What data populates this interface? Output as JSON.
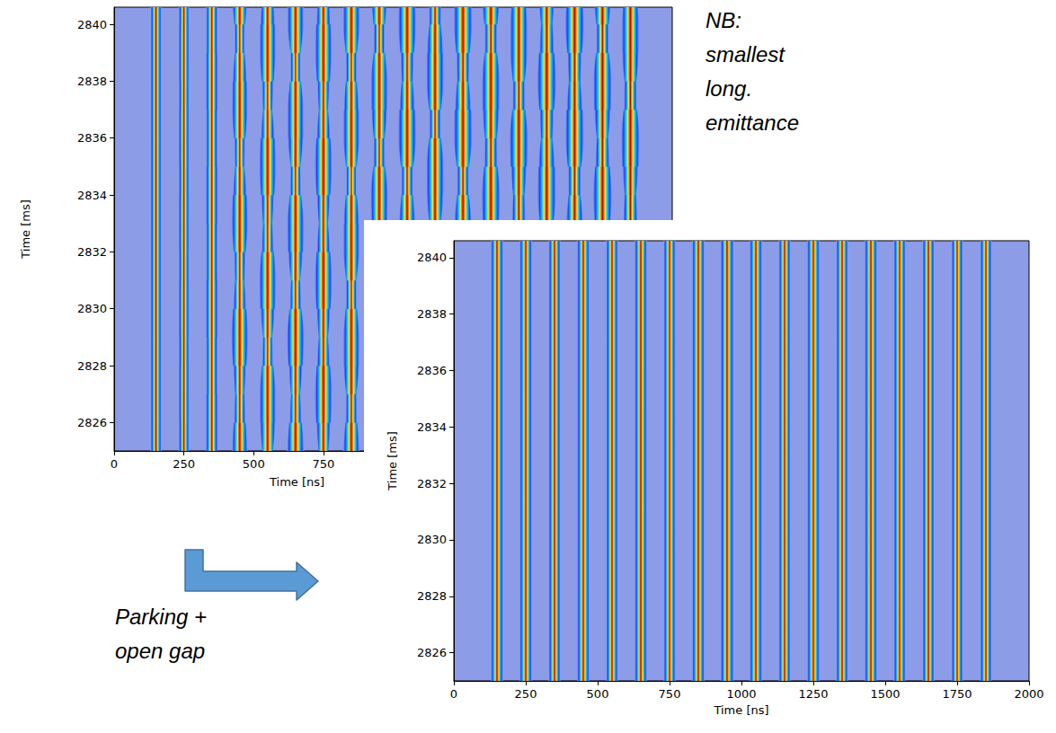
{
  "chart_data": [
    {
      "type": "waterfall",
      "xlabel": "Time [ns]",
      "ylabel": "Time [ms]",
      "xlim": [
        0,
        2000
      ],
      "xticks": [
        0,
        250,
        500,
        750
      ],
      "ylim": [
        2825,
        2840.6
      ],
      "yticks": [
        2826,
        2828,
        2830,
        2832,
        2834,
        2836,
        2838,
        2840
      ],
      "grid": false,
      "times": [
        2825,
        2826,
        2827,
        2828,
        2829,
        2830,
        2831,
        2832,
        2833,
        2834,
        2835,
        2836,
        2837,
        2838,
        2839,
        2840,
        2841
      ],
      "bunches": [
        {
          "center": 150,
          "length": [
            38,
            38,
            37,
            38,
            38,
            37,
            38,
            38,
            37,
            38,
            38,
            37,
            38,
            38,
            37,
            38,
            38
          ]
        },
        {
          "center": 250,
          "length": [
            36,
            36,
            37,
            36,
            36,
            37,
            36,
            36,
            37,
            36,
            36,
            37,
            36,
            36,
            37,
            36,
            36
          ]
        },
        {
          "center": 350,
          "length": [
            40,
            42,
            40,
            38,
            40,
            42,
            40,
            38,
            40,
            42,
            40,
            38,
            40,
            42,
            40,
            38,
            40
          ]
        },
        {
          "center": 450,
          "length": [
            55,
            40,
            30,
            45,
            60,
            45,
            30,
            40,
            58,
            48,
            30,
            38,
            56,
            50,
            32,
            36,
            55
          ]
        },
        {
          "center": 550,
          "length": [
            35,
            55,
            58,
            38,
            30,
            50,
            60,
            42,
            30,
            45,
            60,
            48,
            30,
            40,
            58,
            52,
            32
          ]
        },
        {
          "center": 650,
          "length": [
            60,
            42,
            30,
            48,
            62,
            40,
            30,
            52,
            60,
            38,
            32,
            55,
            58,
            36,
            34,
            58,
            55
          ]
        },
        {
          "center": 750,
          "length": [
            32,
            50,
            62,
            45,
            30,
            48,
            62,
            46,
            30,
            46,
            62,
            48,
            30,
            44,
            60,
            50,
            32
          ]
        },
        {
          "center": 850,
          "length": [
            58,
            40,
            34,
            56,
            58,
            38,
            34,
            58,
            56,
            36,
            36,
            58,
            54,
            36,
            38,
            60,
            52
          ]
        },
        {
          "center": 950,
          "length": [
            40,
            62,
            50,
            34,
            48,
            64,
            44,
            34,
            52,
            62,
            40,
            36,
            56,
            60,
            38,
            38,
            58
          ]
        },
        {
          "center": 1050,
          "length": [
            64,
            44,
            36,
            58,
            62,
            40,
            38,
            62,
            58,
            38,
            42,
            64,
            54,
            36,
            46,
            64,
            50
          ]
        },
        {
          "center": 1150,
          "length": [
            36,
            56,
            66,
            46,
            36,
            58,
            64,
            42,
            38,
            60,
            62,
            40,
            40,
            62,
            58,
            38,
            44
          ]
        },
        {
          "center": 1250,
          "length": [
            66,
            46,
            38,
            58,
            66,
            42,
            38,
            62,
            62,
            40,
            42,
            66,
            58,
            38,
            46,
            66,
            54
          ]
        },
        {
          "center": 1350,
          "length": [
            44,
            66,
            56,
            38,
            50,
            68,
            50,
            38,
            56,
            66,
            46,
            40,
            60,
            64,
            42,
            44,
            64
          ]
        },
        {
          "center": 1450,
          "length": [
            60,
            40,
            44,
            66,
            54,
            38,
            50,
            68,
            48,
            38,
            56,
            66,
            44,
            40,
            62,
            62,
            40
          ]
        },
        {
          "center": 1550,
          "length": [
            40,
            60,
            66,
            44,
            42,
            64,
            62,
            40,
            46,
            66,
            58,
            38,
            50,
            68,
            52,
            38,
            56
          ]
        },
        {
          "center": 1650,
          "length": [
            66,
            46,
            40,
            60,
            64,
            42,
            42,
            64,
            60,
            40,
            46,
            66,
            56,
            38,
            50,
            68,
            50
          ]
        },
        {
          "center": 1750,
          "length": [
            42,
            64,
            58,
            40,
            48,
            66,
            54,
            38,
            52,
            68,
            50,
            38,
            58,
            66,
            44,
            42,
            62
          ]
        },
        {
          "center": 1850,
          "length": [
            62,
            42,
            46,
            66,
            56,
            40,
            50,
            68,
            50,
            38,
            56,
            66,
            46,
            40,
            60,
            62,
            42
          ]
        }
      ]
    },
    {
      "type": "waterfall",
      "xlabel": "Time [ns]",
      "ylabel": "Time [ms]",
      "xlim": [
        0,
        2000
      ],
      "xticks": [
        0,
        250,
        500,
        750,
        1000,
        1250,
        1500,
        1750,
        2000
      ],
      "ylim": [
        2825,
        2840.6
      ],
      "yticks": [
        2826,
        2828,
        2830,
        2832,
        2834,
        2836,
        2838,
        2840
      ],
      "grid": false,
      "times": [
        2825,
        2841
      ],
      "bunches": [
        {
          "center": 150,
          "length": [
            42,
            42
          ]
        },
        {
          "center": 250,
          "length": [
            42,
            42
          ]
        },
        {
          "center": 350,
          "length": [
            40,
            40
          ]
        },
        {
          "center": 450,
          "length": [
            42,
            42
          ]
        },
        {
          "center": 550,
          "length": [
            40,
            40
          ]
        },
        {
          "center": 650,
          "length": [
            42,
            42
          ]
        },
        {
          "center": 750,
          "length": [
            40,
            40
          ]
        },
        {
          "center": 850,
          "length": [
            42,
            42
          ]
        },
        {
          "center": 950,
          "length": [
            44,
            44
          ]
        },
        {
          "center": 1050,
          "length": [
            42,
            42
          ]
        },
        {
          "center": 1150,
          "length": [
            40,
            40
          ]
        },
        {
          "center": 1250,
          "length": [
            42,
            42
          ]
        },
        {
          "center": 1350,
          "length": [
            40,
            40
          ]
        },
        {
          "center": 1450,
          "length": [
            42,
            42
          ]
        },
        {
          "center": 1550,
          "length": [
            40,
            40
          ]
        },
        {
          "center": 1650,
          "length": [
            40,
            40
          ]
        },
        {
          "center": 1750,
          "length": [
            38,
            38
          ]
        },
        {
          "center": 1850,
          "length": [
            38,
            38
          ]
        }
      ]
    }
  ],
  "annotations": [
    {
      "lines": [
        "NB:",
        "smallest",
        "long.",
        "emittance"
      ]
    },
    {
      "lines": [
        "Parking +",
        "open gap"
      ]
    }
  ]
}
